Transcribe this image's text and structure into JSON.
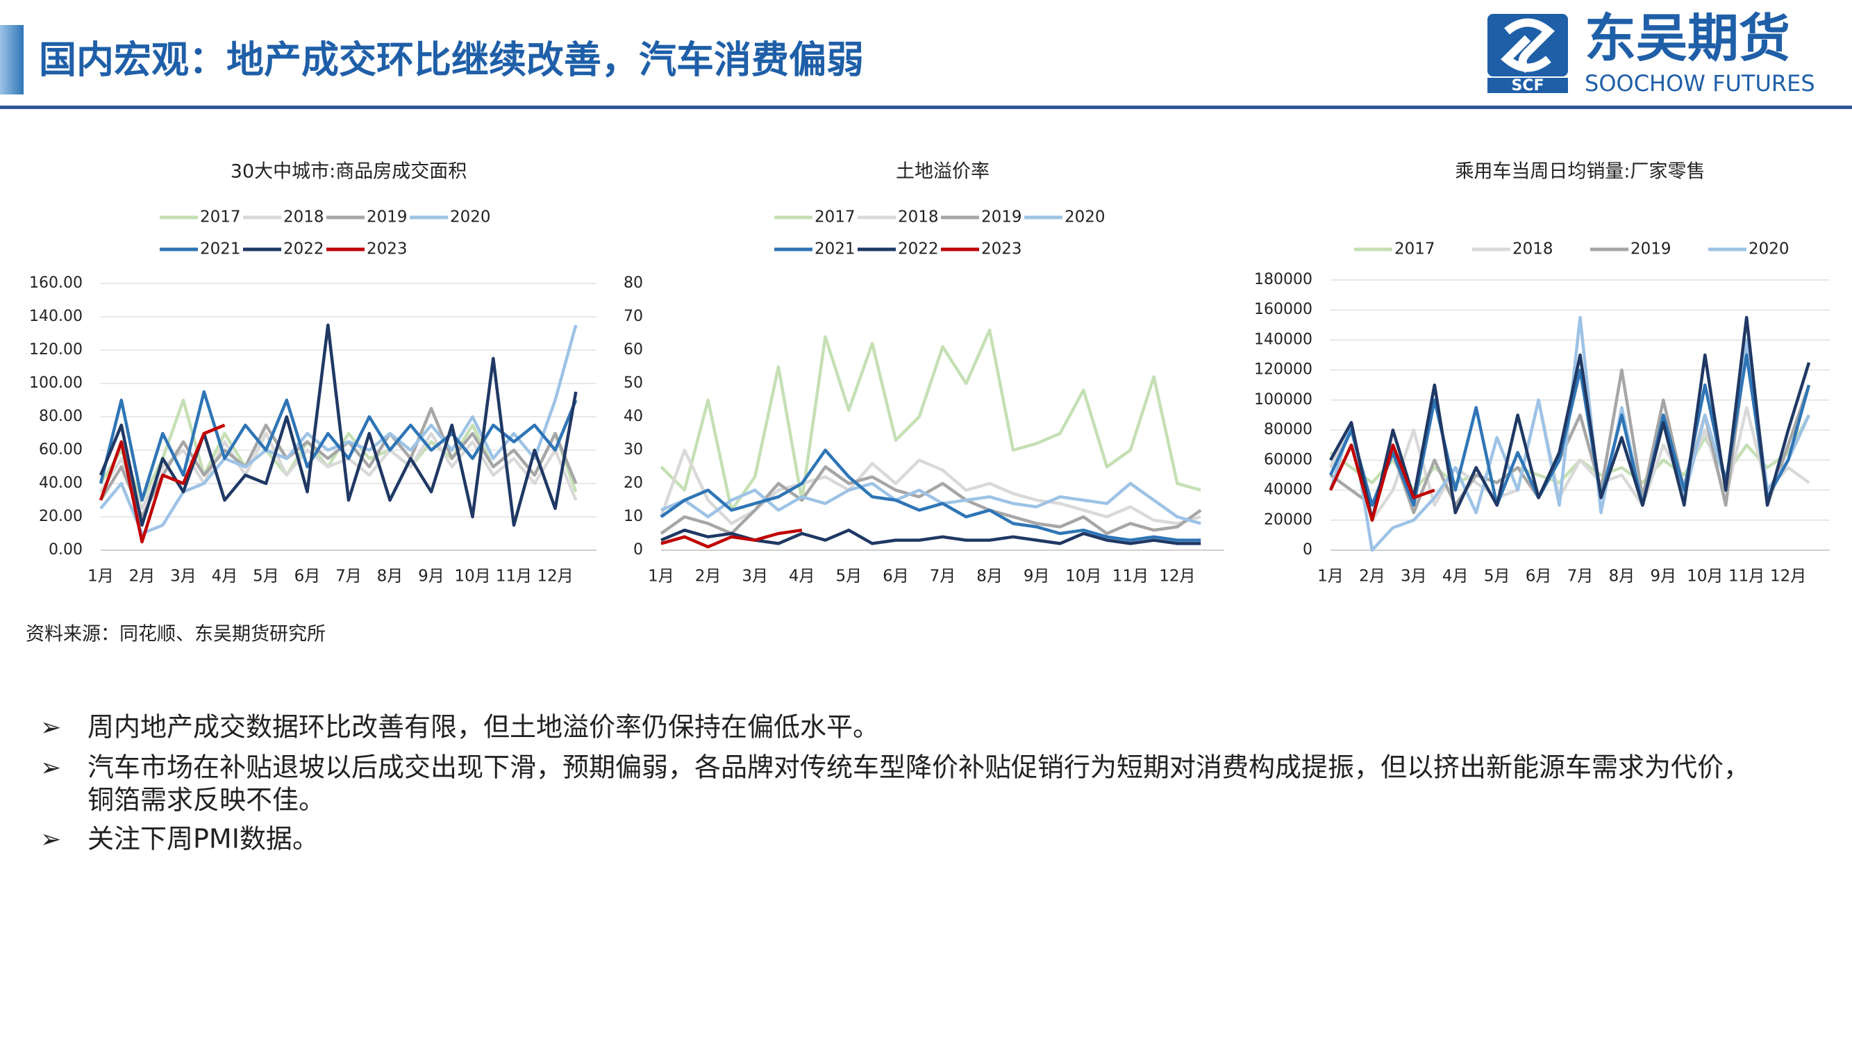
{
  "header": {
    "title": "国内宏观：地产成交环比继续改善，汽车消费偏弱",
    "brand": "东吴期货",
    "brand_en": "SOOCHOW FUTURES",
    "logo_mark": "SCF"
  },
  "chart_data": [
    {
      "type": "line",
      "title": "30大中城市:商品房成交面积",
      "legend_rows": [
        4,
        3
      ],
      "xlim": [
        1,
        13
      ],
      "xticks": [
        {
          "value": 1,
          "label": "1月"
        },
        {
          "value": 2,
          "label": "2月"
        },
        {
          "value": 3,
          "label": "3月"
        },
        {
          "value": 4,
          "label": "4月"
        },
        {
          "value": 5,
          "label": "5月"
        },
        {
          "value": 6,
          "label": "6月"
        },
        {
          "value": 7,
          "label": "7月"
        },
        {
          "value": 8,
          "label": "8月"
        },
        {
          "value": 9,
          "label": "9月"
        },
        {
          "value": 10,
          "label": "10月"
        },
        {
          "value": 11,
          "label": "11月"
        },
        {
          "value": 12,
          "label": "12月"
        }
      ],
      "x": [
        1,
        1.5,
        2,
        2.5,
        3,
        3.5,
        4,
        4.5,
        5,
        5.5,
        6,
        6.5,
        7,
        7.5,
        8,
        8.5,
        9,
        9.5,
        10,
        10.5,
        11,
        11.5,
        12,
        12.5
      ],
      "ylim": [
        0,
        160
      ],
      "yticks": [
        {
          "value": 0,
          "label": "0.00"
        },
        {
          "value": 20,
          "label": "20.00"
        },
        {
          "value": 40,
          "label": "40.00"
        },
        {
          "value": 60,
          "label": "60.00"
        },
        {
          "value": 80,
          "label": "80.00"
        },
        {
          "value": 100,
          "label": "100.00"
        },
        {
          "value": 120,
          "label": "120.00"
        },
        {
          "value": 140,
          "label": "140.00"
        },
        {
          "value": 160,
          "label": "160.00"
        }
      ],
      "grid": true,
      "series": [
        {
          "name": "2017",
          "color": "#c5e0b4",
          "values": [
            40,
            60,
            30,
            55,
            90,
            45,
            70,
            50,
            60,
            45,
            65,
            50,
            70,
            55,
            60,
            50,
            65,
            55,
            75,
            50,
            60,
            45,
            70,
            35
          ]
        },
        {
          "name": "2018",
          "color": "#d9d9d9",
          "values": [
            35,
            55,
            25,
            50,
            60,
            40,
            65,
            45,
            70,
            45,
            60,
            50,
            55,
            45,
            60,
            50,
            70,
            50,
            65,
            45,
            55,
            40,
            60,
            30
          ]
        },
        {
          "name": "2019",
          "color": "#a6a6a6",
          "values": [
            30,
            50,
            20,
            45,
            65,
            45,
            60,
            50,
            75,
            55,
            65,
            55,
            65,
            50,
            70,
            55,
            85,
            55,
            70,
            50,
            60,
            45,
            70,
            40
          ]
        },
        {
          "name": "2020",
          "color": "#9dc3e6",
          "values": [
            25,
            40,
            10,
            15,
            35,
            40,
            55,
            50,
            60,
            55,
            70,
            60,
            65,
            60,
            70,
            60,
            75,
            60,
            80,
            55,
            70,
            55,
            90,
            135
          ]
        },
        {
          "name": "2021",
          "color": "#2e75b6",
          "values": [
            40,
            90,
            30,
            70,
            45,
            95,
            55,
            75,
            60,
            90,
            50,
            70,
            55,
            80,
            60,
            75,
            60,
            70,
            55,
            75,
            65,
            75,
            60,
            90
          ]
        },
        {
          "name": "2022",
          "color": "#1f3864",
          "values": [
            45,
            75,
            15,
            55,
            35,
            70,
            30,
            45,
            40,
            80,
            35,
            135,
            30,
            70,
            30,
            55,
            35,
            75,
            20,
            115,
            15,
            60,
            25,
            95
          ]
        },
        {
          "name": "2023",
          "color": "#c00000",
          "values": [
            30,
            65,
            5,
            45,
            40,
            70,
            75,
            null,
            null,
            null,
            null,
            null,
            null,
            null,
            null,
            null,
            null,
            null,
            null,
            null,
            null,
            null,
            null,
            null
          ]
        }
      ]
    },
    {
      "type": "line",
      "title": "土地溢价率",
      "legend_rows": [
        4,
        3
      ],
      "xlim": [
        1,
        13
      ],
      "xticks": [
        {
          "value": 1,
          "label": "1月"
        },
        {
          "value": 2,
          "label": "2月"
        },
        {
          "value": 3,
          "label": "3月"
        },
        {
          "value": 4,
          "label": "4月"
        },
        {
          "value": 5,
          "label": "5月"
        },
        {
          "value": 6,
          "label": "6月"
        },
        {
          "value": 7,
          "label": "7月"
        },
        {
          "value": 8,
          "label": "8月"
        },
        {
          "value": 9,
          "label": "9月"
        },
        {
          "value": 10,
          "label": "10月"
        },
        {
          "value": 11,
          "label": "11月"
        },
        {
          "value": 12,
          "label": "12月"
        }
      ],
      "x": [
        1,
        1.5,
        2,
        2.5,
        3,
        3.5,
        4,
        4.5,
        5,
        5.5,
        6,
        6.5,
        7,
        7.5,
        8,
        8.5,
        9,
        9.5,
        10,
        10.5,
        11,
        11.5,
        12,
        12.5
      ],
      "ylim": [
        0,
        80
      ],
      "yticks": [
        0,
        10,
        20,
        30,
        40,
        50,
        60,
        70,
        80
      ],
      "grid": false,
      "series": [
        {
          "name": "2017",
          "color": "#c5e0b4",
          "values": [
            25,
            18,
            45,
            12,
            22,
            55,
            15,
            64,
            42,
            62,
            33,
            40,
            61,
            50,
            66,
            30,
            32,
            35,
            48,
            25,
            30,
            52,
            20,
            18
          ]
        },
        {
          "name": "2018",
          "color": "#d9d9d9",
          "values": [
            10,
            30,
            15,
            8,
            12,
            18,
            20,
            22,
            18,
            26,
            20,
            27,
            24,
            18,
            20,
            17,
            15,
            14,
            12,
            10,
            13,
            9,
            8,
            10
          ]
        },
        {
          "name": "2019",
          "color": "#a6a6a6",
          "values": [
            5,
            10,
            8,
            5,
            12,
            20,
            15,
            25,
            20,
            22,
            18,
            16,
            20,
            15,
            12,
            10,
            8,
            7,
            10,
            5,
            8,
            6,
            7,
            12
          ]
        },
        {
          "name": "2020",
          "color": "#9dc3e6",
          "values": [
            12,
            15,
            10,
            15,
            18,
            12,
            16,
            14,
            18,
            20,
            15,
            18,
            14,
            15,
            16,
            14,
            13,
            16,
            15,
            14,
            20,
            15,
            10,
            8
          ]
        },
        {
          "name": "2021",
          "color": "#2e75b6",
          "values": [
            10,
            15,
            18,
            12,
            14,
            16,
            20,
            30,
            22,
            16,
            15,
            12,
            14,
            10,
            12,
            8,
            7,
            5,
            6,
            4,
            3,
            4,
            3,
            3
          ]
        },
        {
          "name": "2022",
          "color": "#1f3864",
          "values": [
            3,
            6,
            4,
            5,
            3,
            2,
            5,
            3,
            6,
            2,
            3,
            3,
            4,
            3,
            3,
            4,
            3,
            2,
            5,
            3,
            2,
            3,
            2,
            2
          ]
        },
        {
          "name": "2023",
          "color": "#c00000",
          "values": [
            2,
            4,
            1,
            4,
            3,
            5,
            6,
            null,
            null,
            null,
            null,
            null,
            null,
            null,
            null,
            null,
            null,
            null,
            null,
            null,
            null,
            null,
            null,
            null
          ]
        }
      ]
    },
    {
      "type": "line",
      "title": "乘用车当周日均销量:厂家零售",
      "legend_rows": [
        4
      ],
      "xlim": [
        1,
        13
      ],
      "xticks": [
        {
          "value": 1,
          "label": "1月"
        },
        {
          "value": 2,
          "label": "2月"
        },
        {
          "value": 3,
          "label": "3月"
        },
        {
          "value": 4,
          "label": "4月"
        },
        {
          "value": 5,
          "label": "5月"
        },
        {
          "value": 6,
          "label": "6月"
        },
        {
          "value": 7,
          "label": "7月"
        },
        {
          "value": 8,
          "label": "8月"
        },
        {
          "value": 9,
          "label": "9月"
        },
        {
          "value": 10,
          "label": "10月"
        },
        {
          "value": 11,
          "label": "11月"
        },
        {
          "value": 12,
          "label": "12月"
        }
      ],
      "x": [
        1,
        1.5,
        2,
        2.5,
        3,
        3.5,
        4,
        4.5,
        5,
        5.5,
        6,
        6.5,
        7,
        7.5,
        8,
        8.5,
        9,
        9.5,
        10,
        10.5,
        11,
        11.5,
        12,
        12.5
      ],
      "ylim": [
        0,
        180000
      ],
      "yticks": [
        0,
        20000,
        40000,
        60000,
        80000,
        100000,
        120000,
        140000,
        160000,
        180000
      ],
      "grid": true,
      "series": [
        {
          "name": "2017",
          "color": "#c5e0b4",
          "values": [
            65000,
            55000,
            45000,
            60000,
            40000,
            55000,
            45000,
            50000,
            45000,
            55000,
            50000,
            45000,
            60000,
            50000,
            55000,
            45000,
            60000,
            50000,
            75000,
            50000,
            70000,
            55000,
            65000,
            90000
          ]
        },
        {
          "name": "2018",
          "color": "#d9d9d9",
          "values": [
            55000,
            85000,
            20000,
            40000,
            80000,
            30000,
            55000,
            45000,
            35000,
            40000,
            100000,
            35000,
            60000,
            45000,
            50000,
            30000,
            70000,
            45000,
            80000,
            35000,
            95000,
            40000,
            55000,
            45000
          ]
        },
        {
          "name": "2019",
          "color": "#a6a6a6",
          "values": [
            50000,
            40000,
            30000,
            65000,
            25000,
            60000,
            30000,
            50000,
            45000,
            55000,
            35000,
            60000,
            90000,
            40000,
            120000,
            35000,
            100000,
            40000,
            90000,
            30000,
            135000,
            30000,
            70000,
            110000
          ]
        },
        {
          "name": "2020",
          "color": "#9dc3e6",
          "values": [
            40000,
            85000,
            0,
            15000,
            20000,
            35000,
            55000,
            25000,
            75000,
            40000,
            100000,
            30000,
            155000,
            25000,
            95000,
            30000,
            85000,
            35000,
            90000,
            45000,
            140000,
            40000,
            60000,
            90000
          ]
        },
        {
          "color": "#2e75b6",
          "values": [
            50000,
            80000,
            30000,
            65000,
            30000,
            100000,
            40000,
            95000,
            30000,
            65000,
            35000,
            60000,
            120000,
            35000,
            90000,
            30000,
            90000,
            40000,
            110000,
            45000,
            130000,
            35000,
            60000,
            110000
          ]
        },
        {
          "color": "#1f3864",
          "values": [
            60000,
            85000,
            20000,
            80000,
            35000,
            110000,
            25000,
            55000,
            30000,
            90000,
            35000,
            65000,
            130000,
            35000,
            75000,
            30000,
            85000,
            30000,
            130000,
            40000,
            155000,
            30000,
            80000,
            125000
          ]
        },
        {
          "color": "#c00000",
          "values": [
            40000,
            70000,
            20000,
            70000,
            35000,
            40000,
            null,
            null,
            null,
            null,
            null,
            null,
            null,
            null,
            null,
            null,
            null,
            null,
            null,
            null,
            null,
            null,
            null,
            null
          ]
        }
      ]
    }
  ],
  "source": "资料来源：同花顺、东吴期货研究所",
  "bullets": [
    "周内地产成交数据环比改善有限，但土地溢价率仍保持在偏低水平。",
    "汽车市场在补贴退坡以后成交出现下滑，预期偏弱，各品牌对传统车型降价补贴促销行为短期对消费构成提振，但以挤出新能源车需求为代价，",
    "铜箔需求反映不佳。",
    "关注下周PMI数据。"
  ]
}
